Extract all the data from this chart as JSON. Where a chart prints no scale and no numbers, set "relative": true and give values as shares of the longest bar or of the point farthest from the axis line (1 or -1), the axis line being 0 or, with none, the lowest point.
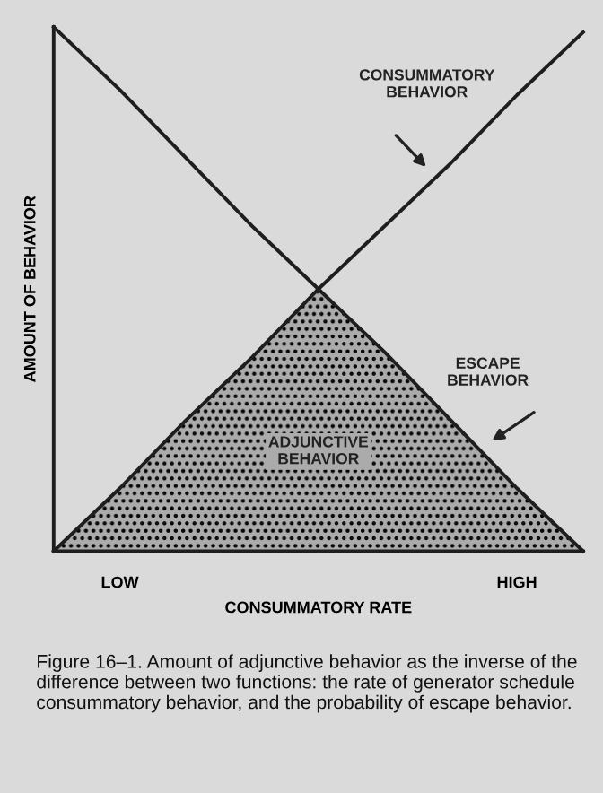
{
  "chart_data": {
    "type": "line",
    "relative": true,
    "xlabel": "CONSUMMATORY RATE",
    "ylabel": "AMOUNT OF BEHAVIOR",
    "categories": [
      null,
      "LOW",
      null,
      null,
      null,
      null,
      null,
      "HIGH",
      null
    ],
    "series": [
      {
        "name": "ADJUNCTIVE BEHAVIOR",
        "type": "area",
        "color": "#ababab",
        "values": [
          0,
          0.12,
          0.25,
          0.37,
          0.5,
          0.38,
          0.25,
          0.12,
          0
        ]
      },
      {
        "name": "CONSUMMATORY BEHAVIOR",
        "color": "#1e1e1e",
        "values": [
          0,
          0.12,
          0.25,
          0.37,
          0.5,
          0.62,
          0.74,
          0.87,
          0.99
        ]
      },
      {
        "name": "ESCAPE BEHAVIOR",
        "color": "#1e1e1e",
        "values": [
          1,
          0.88,
          0.75,
          0.62,
          0.5,
          0.38,
          0.25,
          0.12,
          0
        ]
      }
    ],
    "annotations": [
      "Figure 16–1. Amount of adjunctive behavior as the inverse of the difference between two functions: the rate of generator schedule consummatory behavior, and the probability of escape behavior."
    ]
  }
}
